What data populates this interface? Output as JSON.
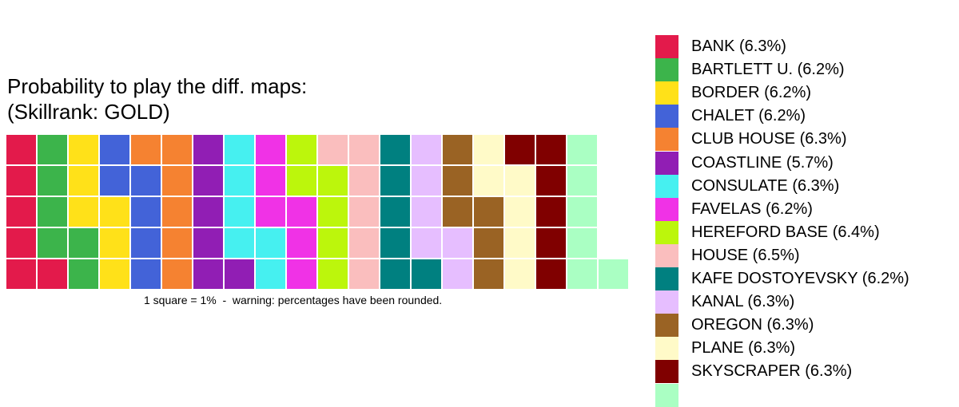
{
  "title_lines": [
    "Probability to play the diff. maps:",
    "(Skillrank: GOLD)"
  ],
  "caption": "1 square = 1%  -  warning: percentages have been rounded.",
  "chart_data": {
    "type": "waffle",
    "unit_label": "1 square = 1%",
    "rows": 5,
    "series": [
      {
        "name": "BANK",
        "label": "BANK (6.3%)",
        "value": 6.3,
        "squares": 6,
        "color": "#E31A4B"
      },
      {
        "name": "BARTLETT U.",
        "label": "BARTLETT U. (6.2%)",
        "value": 6.2,
        "squares": 6,
        "color": "#3CB44B"
      },
      {
        "name": "BORDER",
        "label": "BORDER (6.2%)",
        "value": 6.2,
        "squares": 6,
        "color": "#FFE119"
      },
      {
        "name": "CHALET",
        "label": "CHALET (6.2%)",
        "value": 6.2,
        "squares": 6,
        "color": "#4363D8"
      },
      {
        "name": "CLUB HOUSE",
        "label": "CLUB HOUSE (6.3%)",
        "value": 6.3,
        "squares": 6,
        "color": "#F58231"
      },
      {
        "name": "COASTLINE",
        "label": "COASTLINE (5.7%)",
        "value": 5.7,
        "squares": 6,
        "color": "#911EB4"
      },
      {
        "name": "CONSULATE",
        "label": "CONSULATE (6.3%)",
        "value": 6.3,
        "squares": 6,
        "color": "#46F0F0"
      },
      {
        "name": "FAVELAS",
        "label": "FAVELAS (6.2%)",
        "value": 6.2,
        "squares": 6,
        "color": "#F032E6"
      },
      {
        "name": "HEREFORD BASE",
        "label": "HEREFORD BASE (6.4%)",
        "value": 6.4,
        "squares": 6,
        "color": "#BCF60C"
      },
      {
        "name": "HOUSE",
        "label": "HOUSE (6.5%)",
        "value": 6.5,
        "squares": 6,
        "color": "#FABEBE"
      },
      {
        "name": "KAFE DOSTOYEVSKY",
        "label": "KAFE DOSTOYEVSKY (6.2%)",
        "value": 6.2,
        "squares": 6,
        "color": "#008080"
      },
      {
        "name": "KANAL",
        "label": "KANAL (6.3%)",
        "value": 6.3,
        "squares": 6,
        "color": "#E6BEFF"
      },
      {
        "name": "OREGON",
        "label": "OREGON (6.3%)",
        "value": 6.3,
        "squares": 6,
        "color": "#9A6324"
      },
      {
        "name": "PLANE",
        "label": "PLANE (6.3%)",
        "value": 6.3,
        "squares": 6,
        "color": "#FFFAC8"
      },
      {
        "name": "SKYSCRAPER",
        "label": "SKYSCRAPER (6.3%)",
        "value": 6.3,
        "squares": 6,
        "color": "#800000"
      },
      {
        "name": "",
        "label": "",
        "value": null,
        "squares": 6,
        "color": "#AAFFC3"
      }
    ]
  }
}
